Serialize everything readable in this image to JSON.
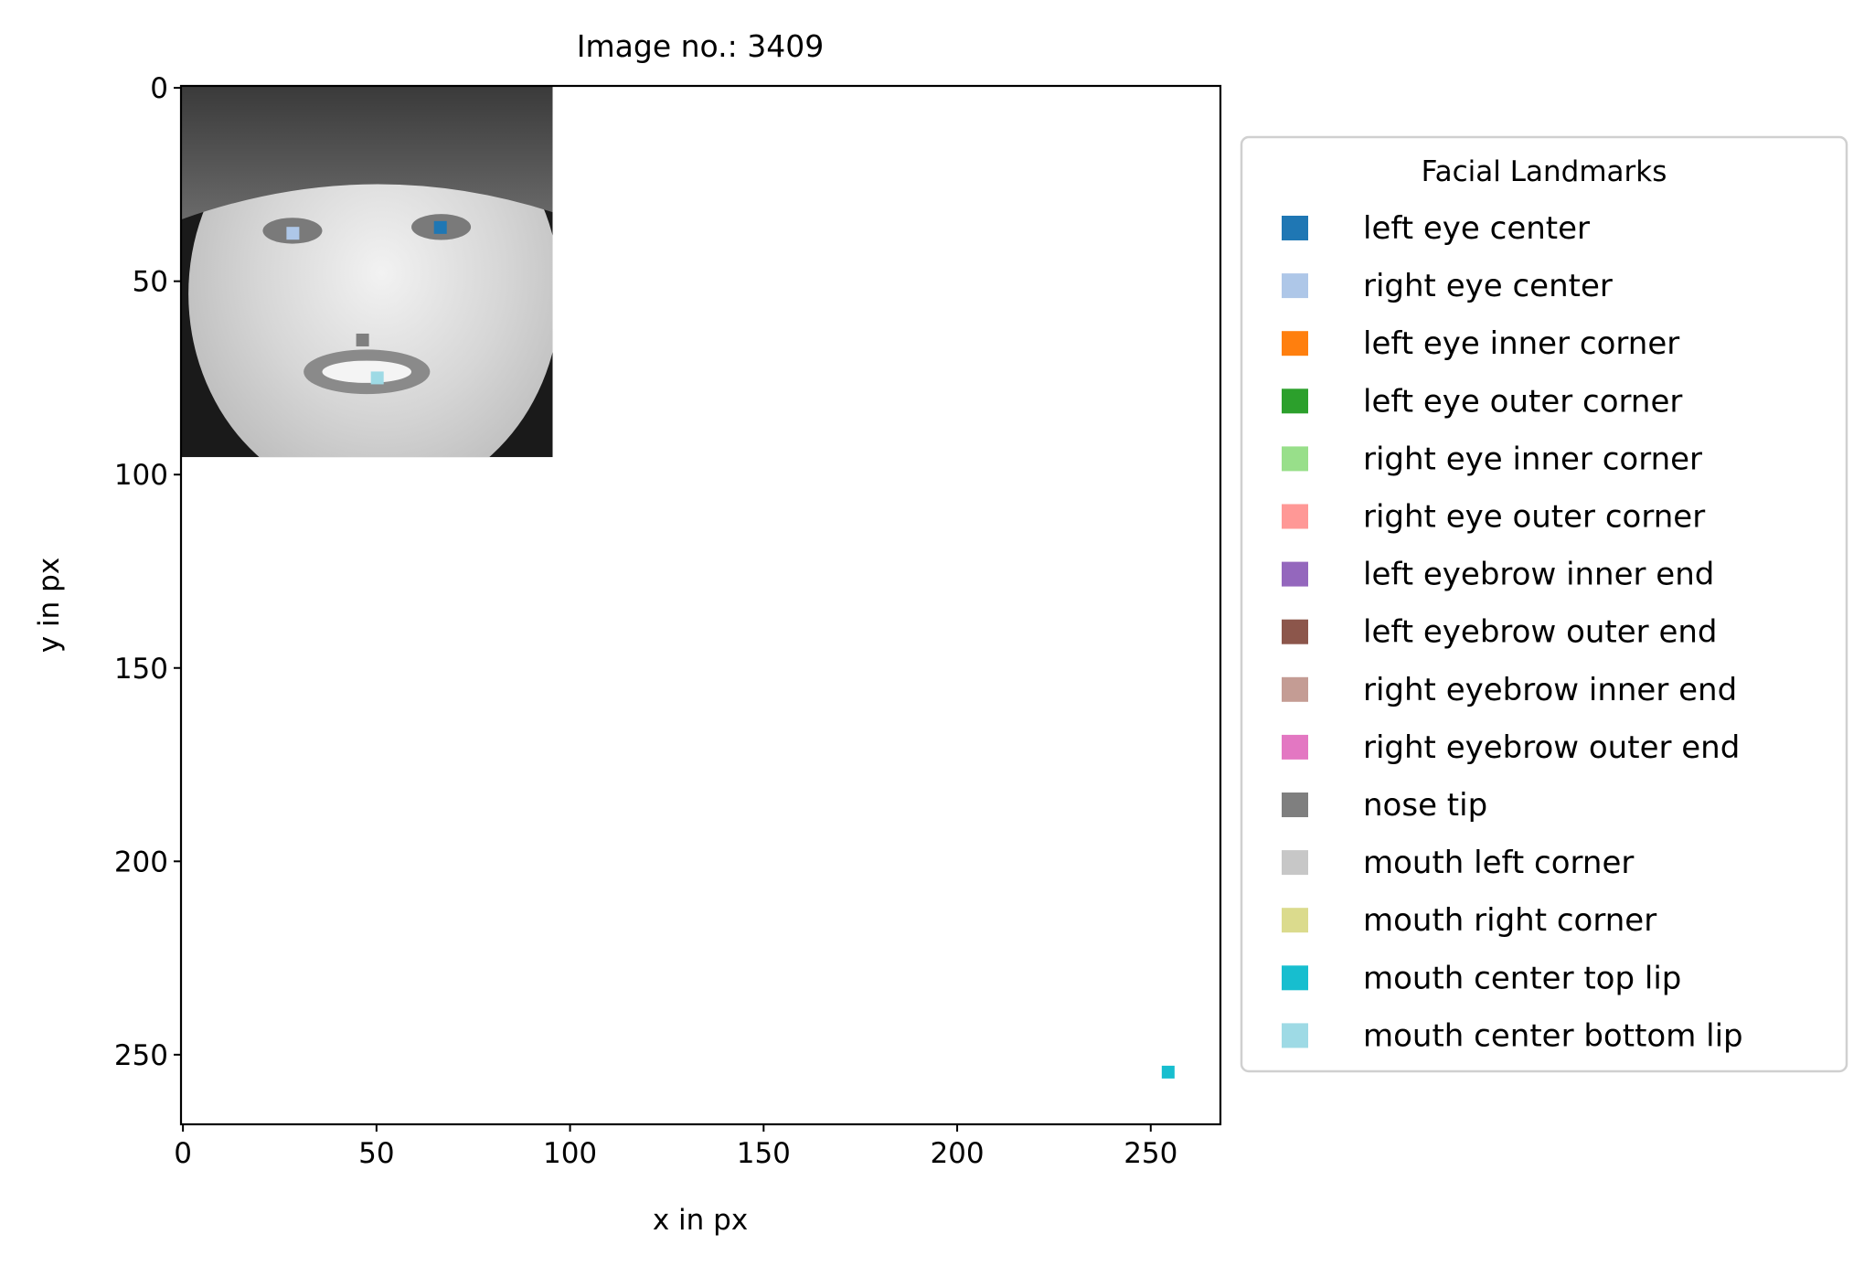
{
  "chart_data": {
    "type": "scatter",
    "title": "Image no.: 3409",
    "xlabel": "x in px",
    "ylabel": "y in px",
    "xlim": [
      -0.5,
      268
    ],
    "ylim": [
      268,
      -0.5
    ],
    "y_axis_inverted": true,
    "xticks": [
      0,
      50,
      100,
      150,
      200,
      250
    ],
    "yticks": [
      0,
      50,
      100,
      150,
      200,
      250
    ],
    "grid": false,
    "background_image": {
      "description_kind": "grayscale face photo",
      "extent_x": [
        0,
        96
      ],
      "extent_y": [
        0,
        96
      ]
    },
    "legend": {
      "title": "Facial Landmarks",
      "placement": "outside-right",
      "entries": [
        {
          "label": "left eye center",
          "color": "#1f77b4"
        },
        {
          "label": "right eye center",
          "color": "#aec7e8"
        },
        {
          "label": "left eye inner corner",
          "color": "#ff7f0e"
        },
        {
          "label": "left eye outer corner",
          "color": "#2ca02c"
        },
        {
          "label": "right eye inner corner",
          "color": "#98df8a"
        },
        {
          "label": "right eye outer corner",
          "color": "#ff9896"
        },
        {
          "label": "left eyebrow inner end",
          "color": "#9467bd"
        },
        {
          "label": "left eyebrow outer end",
          "color": "#8c564b"
        },
        {
          "label": "right eyebrow inner end",
          "color": "#c49c94"
        },
        {
          "label": "right eyebrow outer end",
          "color": "#e377c2"
        },
        {
          "label": "nose tip",
          "color": "#7f7f7f"
        },
        {
          "label": "mouth left corner",
          "color": "#c7c7c7"
        },
        {
          "label": "mouth right corner",
          "color": "#dbdb8d"
        },
        {
          "label": "mouth center top lip",
          "color": "#17becf"
        },
        {
          "label": "mouth center bottom lip",
          "color": "#9edae5"
        }
      ]
    },
    "series": [
      {
        "name": "left eye center",
        "color": "#1f77b4",
        "points": [
          [
            66.5,
            36.1
          ]
        ]
      },
      {
        "name": "right eye center",
        "color": "#aec7e8",
        "points": [
          [
            28.4,
            37.6
          ]
        ]
      },
      {
        "name": "nose tip",
        "color": "#7f7f7f",
        "points": [
          [
            46.4,
            65.2
          ]
        ]
      },
      {
        "name": "mouth center top lip",
        "color": "#17becf",
        "points": [
          [
            254.5,
            254.5
          ]
        ]
      },
      {
        "name": "mouth center bottom lip",
        "color": "#9edae5",
        "points": [
          [
            50.2,
            75.0
          ]
        ]
      }
    ]
  }
}
